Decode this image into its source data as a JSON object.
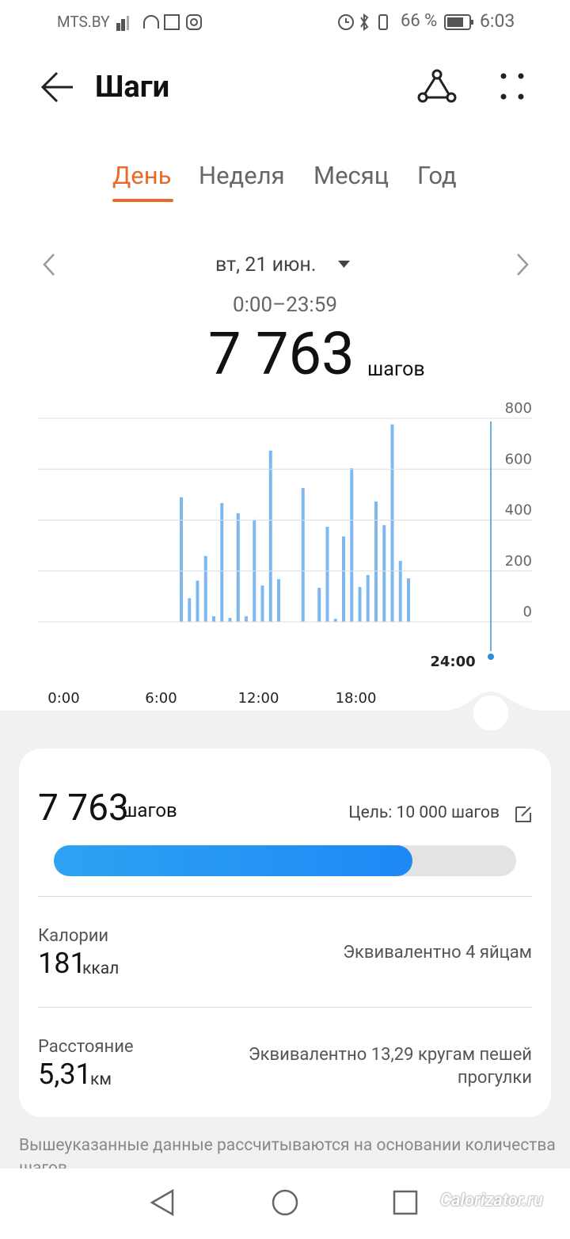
{
  "status_bar": {
    "carrier": "MTS.BY",
    "battery": "66 %",
    "time": "6:03"
  },
  "header": {
    "title": "Шаги"
  },
  "tabs": [
    "День",
    "Неделя",
    "Месяц",
    "Год"
  ],
  "date": "вт, 21 июн.",
  "time_range": "0:00–23:59",
  "total": {
    "value": "7 763",
    "unit": "шагов"
  },
  "chart_data": {
    "type": "bar",
    "color": "#7fb8f0",
    "x": [
      7,
      7.5,
      8,
      8.5,
      9,
      9.5,
      10,
      10.5,
      11,
      11.5,
      12,
      12.5,
      13,
      14.5,
      15.5,
      16,
      16.5,
      17,
      17.5,
      18,
      18.5,
      19,
      19.5,
      20,
      20.5,
      21
    ],
    "values": [
      490,
      93,
      162,
      259,
      22,
      467,
      16,
      427,
      22,
      402,
      143,
      673,
      168,
      526,
      134,
      374,
      12,
      336,
      604,
      137,
      184,
      473,
      380,
      776,
      240,
      171
    ],
    "xlim": [
      0,
      24
    ],
    "xticks": [
      {
        "value": 0,
        "label": "0:00"
      },
      {
        "value": 6,
        "label": "6:00"
      },
      {
        "value": 12,
        "label": "12:00"
      },
      {
        "value": 18,
        "label": "18:00"
      }
    ],
    "ylim": [
      0,
      800
    ],
    "yticks": [
      0,
      200,
      400,
      600,
      800
    ],
    "grid": true,
    "cursor_label": "24:00"
  },
  "summary": {
    "steps": {
      "value": 7763,
      "label": "7 763"
    },
    "unit": "шагов",
    "goal": {
      "value": 10000,
      "label": "Цель: 10 000 шагов"
    },
    "calories": {
      "title": "Калории",
      "value": "181",
      "unit": "ккал",
      "note": "Эквивалентно 4 яйцам"
    },
    "distance": {
      "title": "Расстояние",
      "value": "5,31",
      "unit": "км",
      "note": "Эквивалентно 13,29 кругам пешей прогулки"
    }
  },
  "footnote": "Вышеуказанные данные рассчитываются на основании количества шагов",
  "watermark": "Calorizator.ru"
}
